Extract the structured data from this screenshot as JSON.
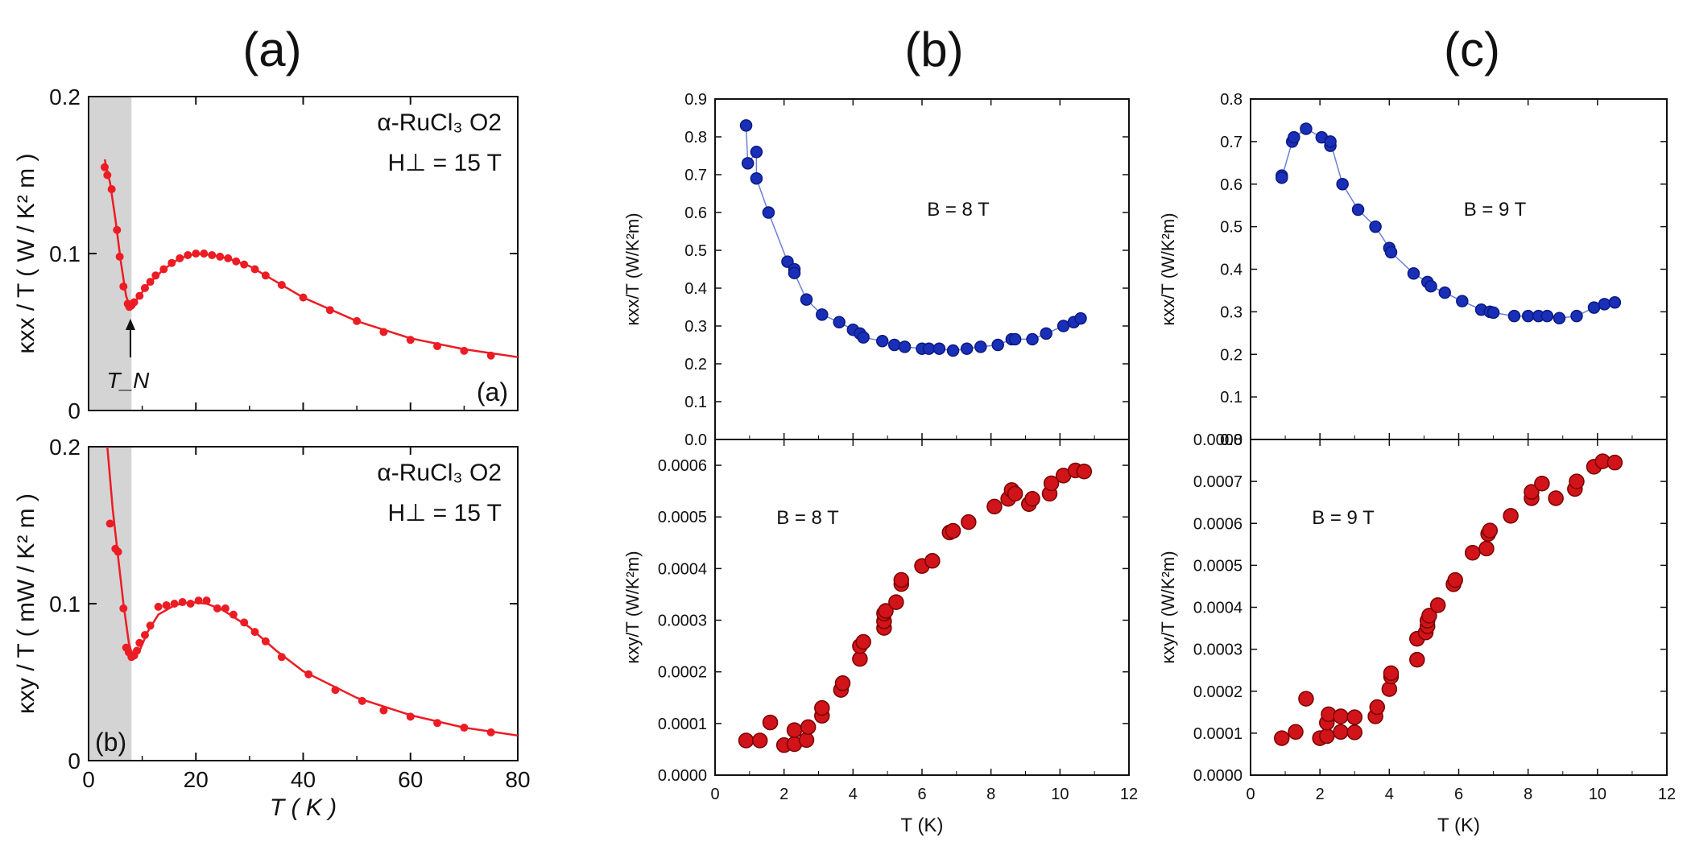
{
  "figure": {
    "panel_labels": [
      "(a)",
      "(b)",
      "(c)"
    ],
    "subpanel_labels": [
      "(a)",
      "(b)"
    ]
  },
  "colors": {
    "red": "#ec1c24",
    "blue_fill": "#1a2fb8",
    "blue_line": "#6c7fd6",
    "dark_red_fill": "#d0141a",
    "dark_red_edge": "#7a0000",
    "shade": "#d4d4d4"
  },
  "chart_data": [
    {
      "id": "a_top",
      "type": "scatter",
      "title": "",
      "material_label": "α-RuCl₃ O2",
      "field_label": "H⊥ = 15 T",
      "ylabel": "κxx / T ( W / K² m )",
      "xlabel": "",
      "xlim": [
        0,
        80
      ],
      "ylim": [
        0,
        0.2
      ],
      "yticks": [
        0,
        0.1,
        0.2
      ],
      "ytick_labels": [
        "0",
        "0.1",
        "0.2"
      ],
      "xticks": [
        0,
        20,
        40,
        60,
        80
      ],
      "shaded_region": [
        0,
        8
      ],
      "annotation": "T_N",
      "annotation_at_x": 7.8,
      "subpanel_tag": "(a)",
      "points": [
        [
          3,
          0.155
        ],
        [
          3.5,
          0.15
        ],
        [
          4.3,
          0.141
        ],
        [
          5.3,
          0.115
        ],
        [
          5.8,
          0.098
        ],
        [
          6.5,
          0.079
        ],
        [
          7.3,
          0.068
        ],
        [
          7.6,
          0.066
        ],
        [
          8,
          0.067
        ],
        [
          8.5,
          0.069
        ],
        [
          9.5,
          0.073
        ],
        [
          10.5,
          0.078
        ],
        [
          11.5,
          0.082
        ],
        [
          12.5,
          0.086
        ],
        [
          14,
          0.09
        ],
        [
          15.5,
          0.094
        ],
        [
          17,
          0.097
        ],
        [
          18.5,
          0.099
        ],
        [
          20,
          0.1
        ],
        [
          21.5,
          0.1
        ],
        [
          23,
          0.099
        ],
        [
          24.5,
          0.098
        ],
        [
          26,
          0.097
        ],
        [
          27.5,
          0.095
        ],
        [
          29,
          0.093
        ],
        [
          31,
          0.09
        ],
        [
          33,
          0.086
        ],
        [
          36,
          0.08
        ],
        [
          40,
          0.072
        ],
        [
          45,
          0.064
        ],
        [
          50,
          0.057
        ],
        [
          55,
          0.05
        ],
        [
          60,
          0.045
        ],
        [
          65,
          0.041
        ],
        [
          70,
          0.038
        ],
        [
          75,
          0.035
        ]
      ],
      "fit_curve": [
        [
          3,
          0.16
        ],
        [
          4,
          0.145
        ],
        [
          5,
          0.122
        ],
        [
          6,
          0.095
        ],
        [
          7,
          0.073
        ],
        [
          7.8,
          0.065
        ],
        [
          9,
          0.071
        ],
        [
          11,
          0.08
        ],
        [
          14,
          0.09
        ],
        [
          17,
          0.097
        ],
        [
          20,
          0.1
        ],
        [
          23,
          0.099
        ],
        [
          26,
          0.097
        ],
        [
          30,
          0.092
        ],
        [
          35,
          0.082
        ],
        [
          40,
          0.072
        ],
        [
          50,
          0.057
        ],
        [
          60,
          0.046
        ],
        [
          70,
          0.039
        ],
        [
          80,
          0.034
        ]
      ]
    },
    {
      "id": "a_bottom",
      "type": "scatter",
      "title": "",
      "material_label": "α-RuCl₃ O2",
      "field_label": "H⊥ = 15 T",
      "ylabel": "κxy / T ( mW / K² m )",
      "xlabel": "T ( K )",
      "xlim": [
        0,
        80
      ],
      "ylim": [
        0,
        0.2
      ],
      "yticks": [
        0,
        0.1,
        0.2
      ],
      "ytick_labels": [
        "0",
        "0.1",
        "0.2"
      ],
      "xticks": [
        0,
        20,
        40,
        60,
        80
      ],
      "xtick_labels": [
        "0",
        "20",
        "40",
        "60",
        "80"
      ],
      "shaded_region": [
        0,
        8
      ],
      "subpanel_tag": "(b)",
      "points": [
        [
          4,
          0.151
        ],
        [
          5,
          0.135
        ],
        [
          5.5,
          0.133
        ],
        [
          6.5,
          0.097
        ],
        [
          7,
          0.072
        ],
        [
          7.5,
          0.069
        ],
        [
          8,
          0.066
        ],
        [
          8.5,
          0.067
        ],
        [
          9,
          0.07
        ],
        [
          9.5,
          0.075
        ],
        [
          10.5,
          0.08
        ],
        [
          11.5,
          0.086
        ],
        [
          13,
          0.098
        ],
        [
          14.5,
          0.099
        ],
        [
          16,
          0.1
        ],
        [
          17.5,
          0.101
        ],
        [
          19,
          0.1
        ],
        [
          20.5,
          0.102
        ],
        [
          22,
          0.102
        ],
        [
          24,
          0.097
        ],
        [
          25.5,
          0.097
        ],
        [
          27,
          0.093
        ],
        [
          29,
          0.088
        ],
        [
          31,
          0.082
        ],
        [
          33,
          0.076
        ],
        [
          36,
          0.066
        ],
        [
          41,
          0.055
        ],
        [
          46,
          0.045
        ],
        [
          51,
          0.038
        ],
        [
          55,
          0.032
        ],
        [
          60,
          0.028
        ],
        [
          65,
          0.024
        ],
        [
          70,
          0.021
        ],
        [
          75,
          0.018
        ]
      ],
      "fit_curve": [
        [
          3.5,
          0.2
        ],
        [
          4.5,
          0.16
        ],
        [
          5.5,
          0.13
        ],
        [
          6.5,
          0.1
        ],
        [
          7.5,
          0.075
        ],
        [
          8.3,
          0.065
        ],
        [
          9.5,
          0.07
        ],
        [
          11,
          0.082
        ],
        [
          13,
          0.093
        ],
        [
          16,
          0.099
        ],
        [
          19,
          0.101
        ],
        [
          22,
          0.1
        ],
        [
          25,
          0.096
        ],
        [
          30,
          0.085
        ],
        [
          35,
          0.07
        ],
        [
          40,
          0.057
        ],
        [
          50,
          0.04
        ],
        [
          60,
          0.029
        ],
        [
          70,
          0.021
        ],
        [
          80,
          0.016
        ]
      ]
    },
    {
      "id": "b_top",
      "type": "line",
      "field_label": "B = 8 T",
      "ylabel": "κxx/T (W/K²m)",
      "xlim": [
        0,
        12
      ],
      "ylim": [
        0,
        0.9
      ],
      "yticks": [
        0,
        0.1,
        0.2,
        0.3,
        0.4,
        0.5,
        0.6,
        0.7,
        0.8,
        0.9
      ],
      "ytick_labels": [
        "0.0",
        "0.1",
        "0.2",
        "0.3",
        "0.4",
        "0.5",
        "0.6",
        "0.7",
        "0.8",
        "0.9"
      ],
      "xticks": [
        0,
        2,
        4,
        6,
        8,
        10,
        12
      ],
      "points": [
        [
          0.9,
          0.83
        ],
        [
          0.95,
          0.73
        ],
        [
          1.2,
          0.76
        ],
        [
          1.2,
          0.69
        ],
        [
          1.55,
          0.6
        ],
        [
          2.1,
          0.47
        ],
        [
          2.3,
          0.45
        ],
        [
          2.3,
          0.44
        ],
        [
          2.65,
          0.37
        ],
        [
          3.1,
          0.33
        ],
        [
          3.6,
          0.31
        ],
        [
          4,
          0.29
        ],
        [
          4.2,
          0.28
        ],
        [
          4.3,
          0.27
        ],
        [
          4.85,
          0.26
        ],
        [
          5.2,
          0.25
        ],
        [
          5.5,
          0.245
        ],
        [
          6,
          0.24
        ],
        [
          6.2,
          0.24
        ],
        [
          6.5,
          0.24
        ],
        [
          6.9,
          0.235
        ],
        [
          7.3,
          0.24
        ],
        [
          7.7,
          0.245
        ],
        [
          8.2,
          0.25
        ],
        [
          8.6,
          0.265
        ],
        [
          8.7,
          0.265
        ],
        [
          9.2,
          0.265
        ],
        [
          9.6,
          0.28
        ],
        [
          10.1,
          0.3
        ],
        [
          10.4,
          0.31
        ],
        [
          10.6,
          0.32
        ]
      ]
    },
    {
      "id": "b_bottom",
      "type": "scatter",
      "field_label": "B = 8 T",
      "ylabel": "κxy/T (W/K²m)",
      "xlabel": "T (K)",
      "xlim": [
        0,
        12
      ],
      "ylim": [
        0,
        0.00065
      ],
      "yticks": [
        0,
        0.0001,
        0.0002,
        0.0003,
        0.0004,
        0.0005,
        0.0006
      ],
      "ytick_labels": [
        "0.0000",
        "0.0001",
        "0.0002",
        "0.0003",
        "0.0004",
        "0.0005",
        "0.0006"
      ],
      "xticks": [
        0,
        2,
        4,
        6,
        8,
        10,
        12
      ],
      "xtick_labels": [
        "0",
        "2",
        "4",
        "6",
        "8",
        "10",
        "12"
      ],
      "points": [
        [
          0.9,
          6.7e-05
        ],
        [
          1.3,
          6.7e-05
        ],
        [
          1.6,
          0.000102
        ],
        [
          2,
          5.8e-05
        ],
        [
          2.3,
          6e-05
        ],
        [
          2.3,
          8.7e-05
        ],
        [
          2.65,
          6.8e-05
        ],
        [
          2.7,
          9.3e-05
        ],
        [
          3.1,
          0.000115
        ],
        [
          3.1,
          0.00013
        ],
        [
          3.65,
          0.000165
        ],
        [
          3.7,
          0.000178
        ],
        [
          4.2,
          0.000225
        ],
        [
          4.2,
          0.00025
        ],
        [
          4.3,
          0.000258
        ],
        [
          4.9,
          0.000285
        ],
        [
          4.9,
          0.000298
        ],
        [
          4.9,
          0.000313
        ],
        [
          4.95,
          0.000318
        ],
        [
          5.25,
          0.000335
        ],
        [
          5.4,
          0.00037
        ],
        [
          5.4,
          0.000378
        ],
        [
          6,
          0.000405
        ],
        [
          6.3,
          0.000415
        ],
        [
          6.8,
          0.00047
        ],
        [
          6.9,
          0.000473
        ],
        [
          7.35,
          0.00049
        ],
        [
          8.1,
          0.00052
        ],
        [
          8.5,
          0.000535
        ],
        [
          8.6,
          0.000552
        ],
        [
          8.7,
          0.000545
        ],
        [
          9.1,
          0.000525
        ],
        [
          9.2,
          0.000535
        ],
        [
          9.7,
          0.000545
        ],
        [
          9.75,
          0.000565
        ],
        [
          10.1,
          0.00058
        ],
        [
          10.45,
          0.00059
        ],
        [
          10.7,
          0.000588
        ]
      ]
    },
    {
      "id": "c_top",
      "type": "line",
      "field_label": "B = 9 T",
      "ylabel": "κxx/T (W/K²m)",
      "xlim": [
        0,
        12
      ],
      "ylim": [
        0,
        0.8
      ],
      "yticks": [
        0,
        0.1,
        0.2,
        0.3,
        0.4,
        0.5,
        0.6,
        0.7,
        0.8
      ],
      "ytick_labels": [
        "0.0",
        "0.1",
        "0.2",
        "0.3",
        "0.4",
        "0.5",
        "0.6",
        "0.7",
        "0.8"
      ],
      "xticks": [
        0,
        2,
        4,
        6,
        8,
        10,
        12
      ],
      "points": [
        [
          0.9,
          0.62
        ],
        [
          0.9,
          0.615
        ],
        [
          1.2,
          0.7
        ],
        [
          1.25,
          0.71
        ],
        [
          1.6,
          0.73
        ],
        [
          2.05,
          0.71
        ],
        [
          2.3,
          0.69
        ],
        [
          2.3,
          0.7
        ],
        [
          2.65,
          0.6
        ],
        [
          3.1,
          0.54
        ],
        [
          3.6,
          0.5
        ],
        [
          4,
          0.45
        ],
        [
          4.05,
          0.44
        ],
        [
          4.7,
          0.39
        ],
        [
          5.1,
          0.37
        ],
        [
          5.2,
          0.36
        ],
        [
          5.6,
          0.345
        ],
        [
          6.1,
          0.325
        ],
        [
          6.65,
          0.305
        ],
        [
          6.9,
          0.3
        ],
        [
          7,
          0.298
        ],
        [
          7.6,
          0.29
        ],
        [
          8,
          0.29
        ],
        [
          8.3,
          0.29
        ],
        [
          8.55,
          0.29
        ],
        [
          8.9,
          0.285
        ],
        [
          9.4,
          0.29
        ],
        [
          9.9,
          0.31
        ],
        [
          10.2,
          0.318
        ],
        [
          10.5,
          0.322
        ]
      ]
    },
    {
      "id": "c_bottom",
      "type": "scatter",
      "field_label": "B = 9 T",
      "ylabel": "κxy/T (W/K²m)",
      "xlabel": "T (K)",
      "xlim": [
        0,
        12
      ],
      "ylim": [
        0,
        0.0008
      ],
      "yticks": [
        0,
        0.0001,
        0.0002,
        0.0003,
        0.0004,
        0.0005,
        0.0006,
        0.0007
      ],
      "ytick_labels": [
        "0.0000",
        "0.0001",
        "0.0002",
        "0.0003",
        "0.0004",
        "0.0005",
        "0.0006",
        "0.0007"
      ],
      "top_tick_label": "0.0008",
      "overlap_tick_label": "0.0",
      "xticks": [
        0,
        2,
        4,
        6,
        8,
        10,
        12
      ],
      "xtick_labels": [
        "0",
        "2",
        "4",
        "6",
        "8",
        "10",
        "12"
      ],
      "points": [
        [
          0.9,
          8.8e-05
        ],
        [
          1.3,
          0.000103
        ],
        [
          1.6,
          0.000182
        ],
        [
          2,
          8.8e-05
        ],
        [
          2.2,
          9.3e-05
        ],
        [
          2.2,
          0.000125
        ],
        [
          2.25,
          0.000145
        ],
        [
          2.6,
          0.000103
        ],
        [
          2.6,
          0.00014
        ],
        [
          3,
          0.000102
        ],
        [
          3,
          0.000138
        ],
        [
          3.6,
          0.00014
        ],
        [
          3.65,
          0.000162
        ],
        [
          4,
          0.000205
        ],
        [
          4.05,
          0.000235
        ],
        [
          4.05,
          0.000243
        ],
        [
          4.8,
          0.000275
        ],
        [
          4.8,
          0.000325
        ],
        [
          5.05,
          0.00034
        ],
        [
          5.1,
          0.000355
        ],
        [
          5.1,
          0.000368
        ],
        [
          5.15,
          0.00038
        ],
        [
          5.4,
          0.000405
        ],
        [
          5.85,
          0.000455
        ],
        [
          5.9,
          0.000465
        ],
        [
          6.4,
          0.00053
        ],
        [
          6.8,
          0.00054
        ],
        [
          6.85,
          0.000575
        ],
        [
          6.9,
          0.000583
        ],
        [
          7.5,
          0.000618
        ],
        [
          8.1,
          0.00066
        ],
        [
          8.1,
          0.000675
        ],
        [
          8.4,
          0.000695
        ],
        [
          8.8,
          0.00066
        ],
        [
          9.35,
          0.000682
        ],
        [
          9.4,
          0.0007
        ],
        [
          9.9,
          0.000735
        ],
        [
          10.15,
          0.000748
        ],
        [
          10.5,
          0.000745
        ]
      ]
    }
  ]
}
